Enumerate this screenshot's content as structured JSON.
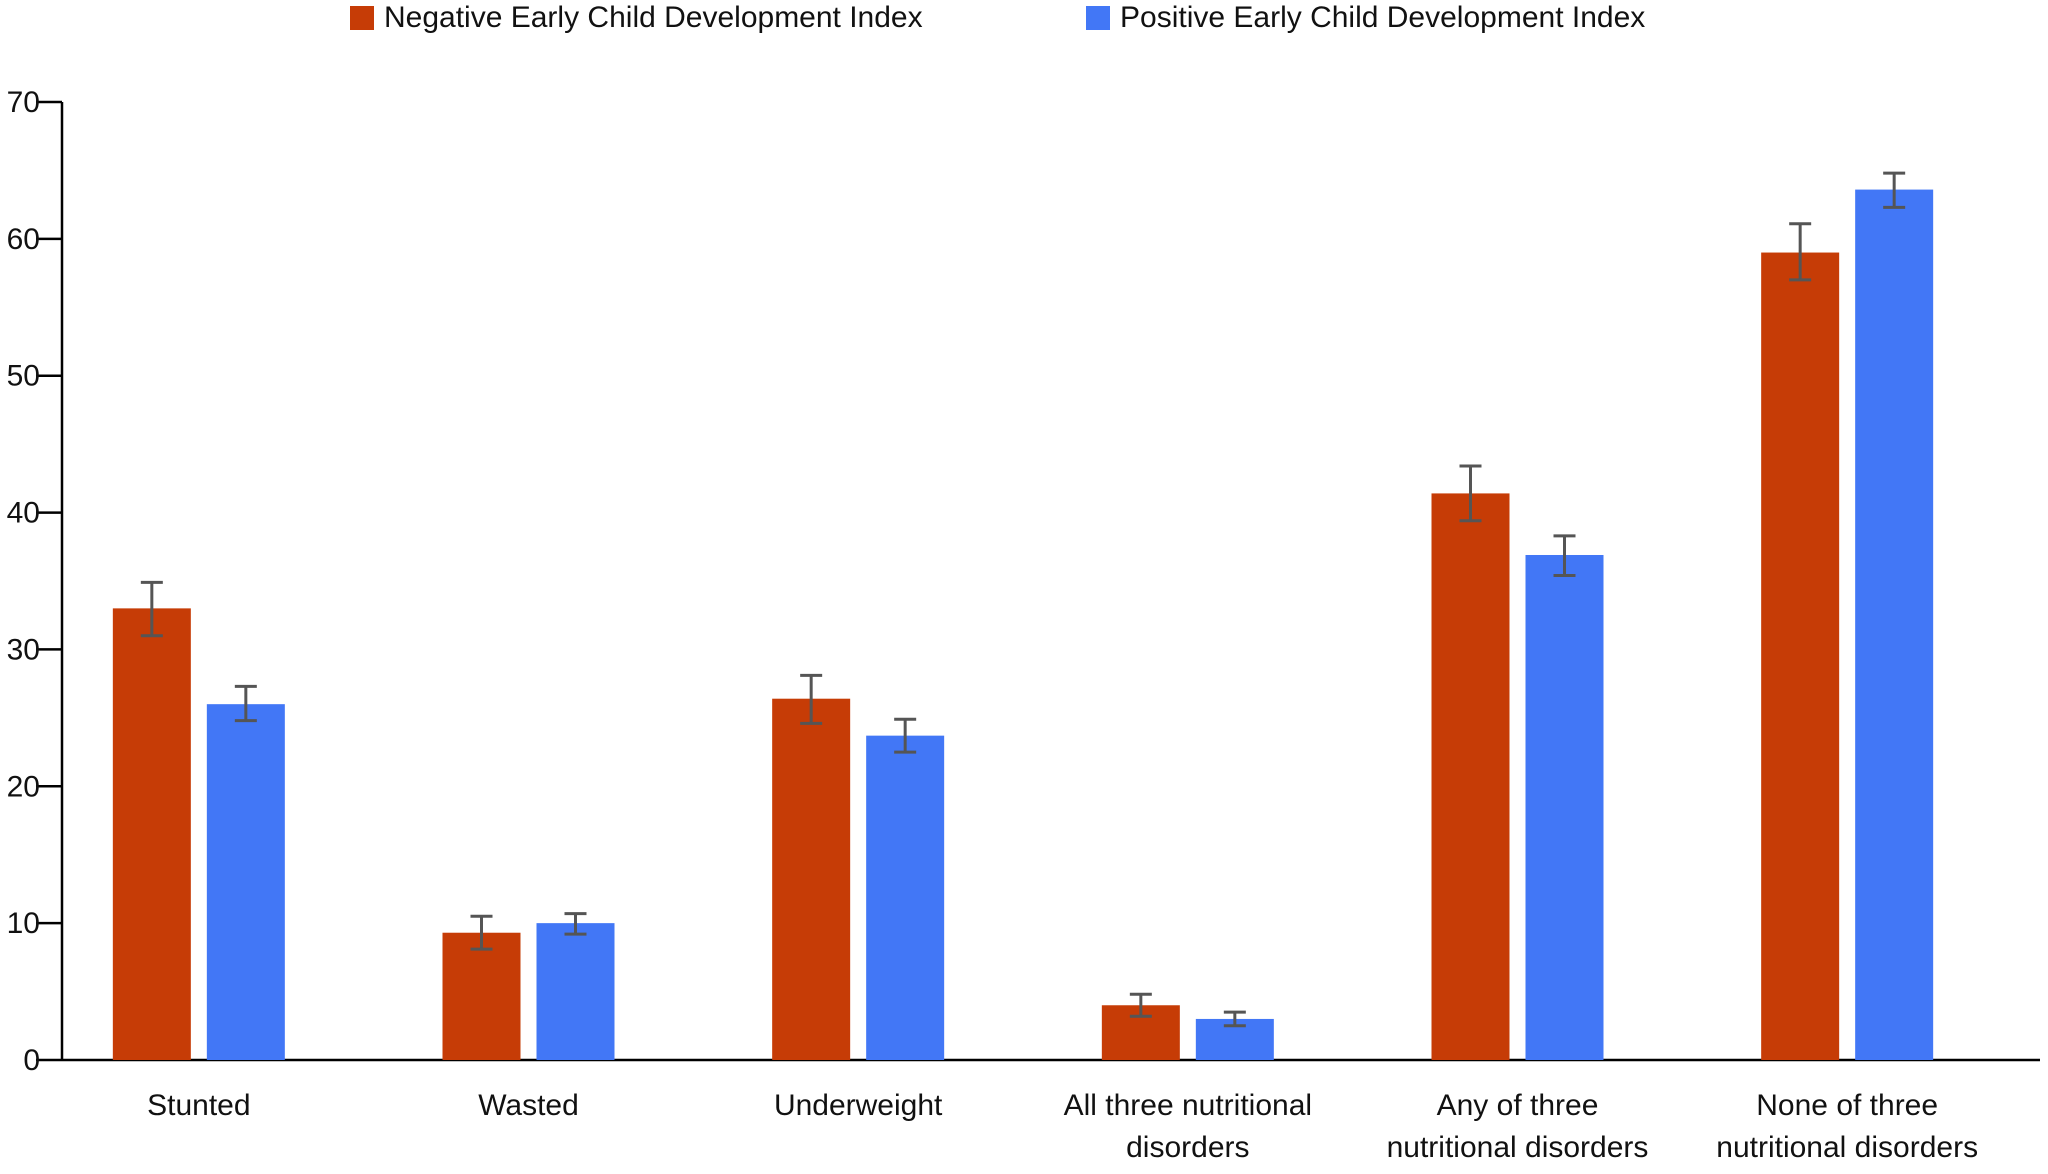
{
  "chart_data": {
    "type": "bar",
    "title": "",
    "xlabel": "",
    "ylabel": "",
    "ylim": [
      0,
      70
    ],
    "yticks": [
      0,
      10,
      20,
      30,
      40,
      50,
      60,
      70
    ],
    "grid": false,
    "legend_position": "top-center",
    "categories": [
      [
        "Stunted"
      ],
      [
        "Wasted"
      ],
      [
        "Underweight"
      ],
      [
        "All three nutritional",
        "disorders"
      ],
      [
        "Any of three",
        "nutritional disorders"
      ],
      [
        "None of three",
        "nutritional disorders"
      ]
    ],
    "series": [
      {
        "name": "Negative Early Child Development Index",
        "color": "#c63c06",
        "values": [
          33.0,
          9.3,
          26.4,
          4.0,
          41.4,
          59.0
        ],
        "error_low": [
          31.0,
          8.1,
          24.6,
          3.2,
          39.4,
          57.0
        ],
        "error_high": [
          34.9,
          10.5,
          28.1,
          4.8,
          43.4,
          61.1
        ]
      },
      {
        "name": "Positive Early Child Development Index",
        "color": "#4277f6",
        "values": [
          26.0,
          10.0,
          23.7,
          3.0,
          36.9,
          63.6
        ],
        "error_low": [
          24.8,
          9.2,
          22.5,
          2.5,
          35.4,
          62.3
        ],
        "error_high": [
          27.3,
          10.7,
          24.9,
          3.5,
          38.3,
          64.8
        ]
      }
    ],
    "error_bar_color": "#555555"
  }
}
